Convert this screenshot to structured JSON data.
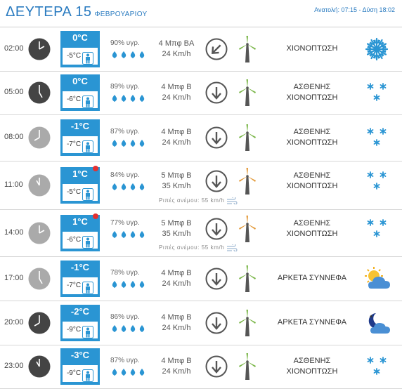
{
  "header": {
    "day": "ΔΕΥΤΕΡΑ 15",
    "month": "ΦΕΒΡΟΥΑΡΙΟΥ",
    "sun_times": "Ανατολή: 07:15 - Δύση 18:02"
  },
  "rows": [
    {
      "time": "02:00",
      "clock": "night",
      "temp": "0°C",
      "feel": "-5°C",
      "alert": false,
      "humidity": "90% υγρ.",
      "wind_force": "4 Μπφ ΒΑ",
      "wind_speed": "24 Km/h",
      "wind_dir": "NE",
      "mill": "green",
      "gust": "",
      "condition_line1": "ΧΙΟΝΟΠΤΩΣΗ",
      "condition_line2": "",
      "icon": "snowflake-icon"
    },
    {
      "time": "05:00",
      "clock": "night",
      "temp": "0°C",
      "feel": "-6°C",
      "alert": false,
      "humidity": "89% υγρ.",
      "wind_force": "4 Μπφ Β",
      "wind_speed": "24 Km/h",
      "wind_dir": "N",
      "mill": "green",
      "gust": "",
      "condition_line1": "ΑΣΘΕΝΗΣ",
      "condition_line2": "ΧΙΟΝΟΠΤΩΣΗ",
      "icon": "light-snow-icon"
    },
    {
      "time": "08:00",
      "clock": "day",
      "temp": "-1°C",
      "feel": "-7°C",
      "alert": false,
      "humidity": "87% υγρ.",
      "wind_force": "4 Μπφ Β",
      "wind_speed": "24 Km/h",
      "wind_dir": "N",
      "mill": "green",
      "gust": "",
      "condition_line1": "ΑΣΘΕΝΗΣ",
      "condition_line2": "ΧΙΟΝΟΠΤΩΣΗ",
      "icon": "light-snow-icon"
    },
    {
      "time": "11:00",
      "clock": "day",
      "temp": "1°C",
      "feel": "-5°C",
      "alert": true,
      "humidity": "84% υγρ.",
      "wind_force": "5 Μπφ Β",
      "wind_speed": "35 Km/h",
      "wind_dir": "N",
      "mill": "orange",
      "gust": "Ριπές ανέμου: 55 km/h",
      "condition_line1": "ΑΣΘΕΝΗΣ",
      "condition_line2": "ΧΙΟΝΟΠΤΩΣΗ",
      "icon": "light-snow-icon"
    },
    {
      "time": "14:00",
      "clock": "day",
      "temp": "1°C",
      "feel": "-6°C",
      "alert": true,
      "humidity": "77% υγρ.",
      "wind_force": "5 Μπφ Β",
      "wind_speed": "35 Km/h",
      "wind_dir": "N",
      "mill": "orange",
      "gust": "Ριπές ανέμου: 55 km/h",
      "condition_line1": "ΑΣΘΕΝΗΣ",
      "condition_line2": "ΧΙΟΝΟΠΤΩΣΗ",
      "icon": "light-snow-icon"
    },
    {
      "time": "17:00",
      "clock": "day",
      "temp": "-1°C",
      "feel": "-7°C",
      "alert": false,
      "humidity": "78% υγρ.",
      "wind_force": "4 Μπφ Β",
      "wind_speed": "24 Km/h",
      "wind_dir": "N",
      "mill": "green",
      "gust": "",
      "condition_line1": "ΑΡΚΕΤΑ ΣΥΝΝΕΦΑ",
      "condition_line2": "",
      "icon": "sun-cloud-icon"
    },
    {
      "time": "20:00",
      "clock": "night",
      "temp": "-2°C",
      "feel": "-9°C",
      "alert": false,
      "humidity": "86% υγρ.",
      "wind_force": "4 Μπφ Β",
      "wind_speed": "24 Km/h",
      "wind_dir": "N",
      "mill": "green",
      "gust": "",
      "condition_line1": "ΑΡΚΕΤΑ ΣΥΝΝΕΦΑ",
      "condition_line2": "",
      "icon": "moon-cloud-icon"
    },
    {
      "time": "23:00",
      "clock": "night",
      "temp": "-3°C",
      "feel": "-9°C",
      "alert": false,
      "humidity": "87% υγρ.",
      "wind_force": "4 Μπφ Β",
      "wind_speed": "24 Km/h",
      "wind_dir": "N",
      "mill": "green",
      "gust": "",
      "condition_line1": "ΑΣΘΕΝΗΣ",
      "condition_line2": "ΧΙΟΝΟΠΤΩΣΗ",
      "icon": "light-snow-icon"
    }
  ],
  "colors": {
    "accent": "#2a7bc0",
    "temp_box": "#2a95d3",
    "alert": "#e53030",
    "mill_green": "#7ab648",
    "mill_orange": "#e39a3a"
  }
}
